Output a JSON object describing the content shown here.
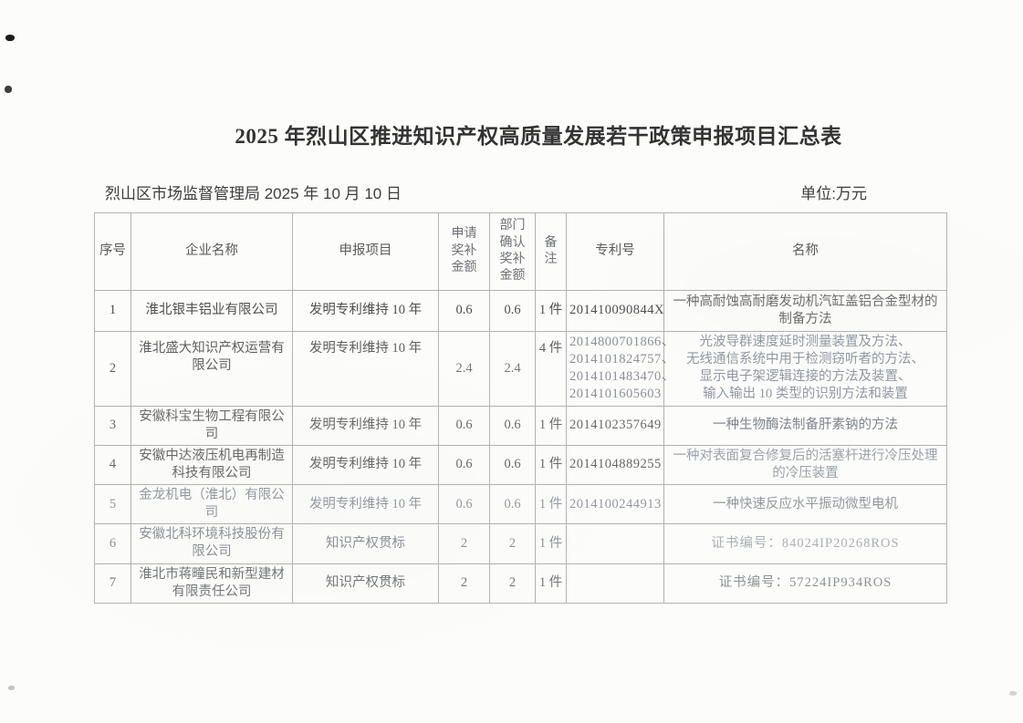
{
  "page": {
    "title": "2025 年烈山区推进知识产权高质量发展若干政策申报项目汇总表",
    "issuer_date": "烈山区市场监督管理局 2025 年 10 月 10 日",
    "unit_label": "单位:万元"
  },
  "table": {
    "headers": {
      "no": "序号",
      "company": "企业名称",
      "project": "申报项目",
      "applied": "申请\n奖补\n金额",
      "confirmed": "部门\n确认\n奖补\n金额",
      "note": "备\n注",
      "patent": "专利号",
      "name": "名称"
    },
    "rows": [
      {
        "no": "1",
        "company": "淮北银丰铝业有限公司",
        "project": "发明专利维持 10 年",
        "applied": "0.6",
        "confirmed": "0.6",
        "note": "1 件",
        "patents": [
          "201410090844X"
        ],
        "names": [
          "一种高耐蚀高耐磨发动机汽缸盖铝合金型材的制备方法"
        ]
      },
      {
        "no": "2",
        "company": "淮北盛大知识产权运营有限公司",
        "project": "发明专利维持 10 年",
        "applied": "2.4",
        "confirmed": "2.4",
        "note": "4 件",
        "patents": [
          "2014800701866、",
          "2014101824757、",
          "2014101483470、",
          "2014101605603"
        ],
        "names": [
          "光波导群速度延时测量装置及方法、",
          "无线通信系统中用于检测窃听者的方法、",
          "显示电子架逻辑连接的方法及装置、",
          "输入输出 10 类型的识别方法和装置"
        ]
      },
      {
        "no": "3",
        "company": "安徽科宝生物工程有限公司",
        "project": "发明专利维持 10 年",
        "applied": "0.6",
        "confirmed": "0.6",
        "note": "1 件",
        "patents": [
          "2014102357649"
        ],
        "names": [
          "一种生物酶法制备肝素钠的方法"
        ]
      },
      {
        "no": "4",
        "company": "安徽中达液压机电再制造科技有限公司",
        "project": "发明专利维持 10 年",
        "applied": "0.6",
        "confirmed": "0.6",
        "note": "1 件",
        "patents": [
          "2014104889255"
        ],
        "names": [
          "一种对表面复合修复后的活塞杆进行冷压处理的冷压装置"
        ]
      },
      {
        "no": "5",
        "company": "金龙机电（淮北）有限公司",
        "project": "发明专利维持 10 年",
        "applied": "0.6",
        "confirmed": "0.6",
        "note": "1 件",
        "patents": [
          "2014100244913"
        ],
        "names": [
          "一种快速反应水平振动微型电机"
        ]
      },
      {
        "no": "6",
        "company": "安徽北科环境科技股份有限公司",
        "project": "知识产权贯标",
        "applied": "2",
        "confirmed": "2",
        "note": "1 件",
        "patents": [],
        "names": [
          "证书编号：84024IP20268ROS"
        ]
      },
      {
        "no": "7",
        "company": "淮北市蒋疃民和新型建材有限责任公司",
        "project": "知识产权贯标",
        "applied": "2",
        "confirmed": "2",
        "note": "1 件",
        "patents": [],
        "names": [
          "证书编号：57224IP934ROS"
        ]
      }
    ]
  }
}
